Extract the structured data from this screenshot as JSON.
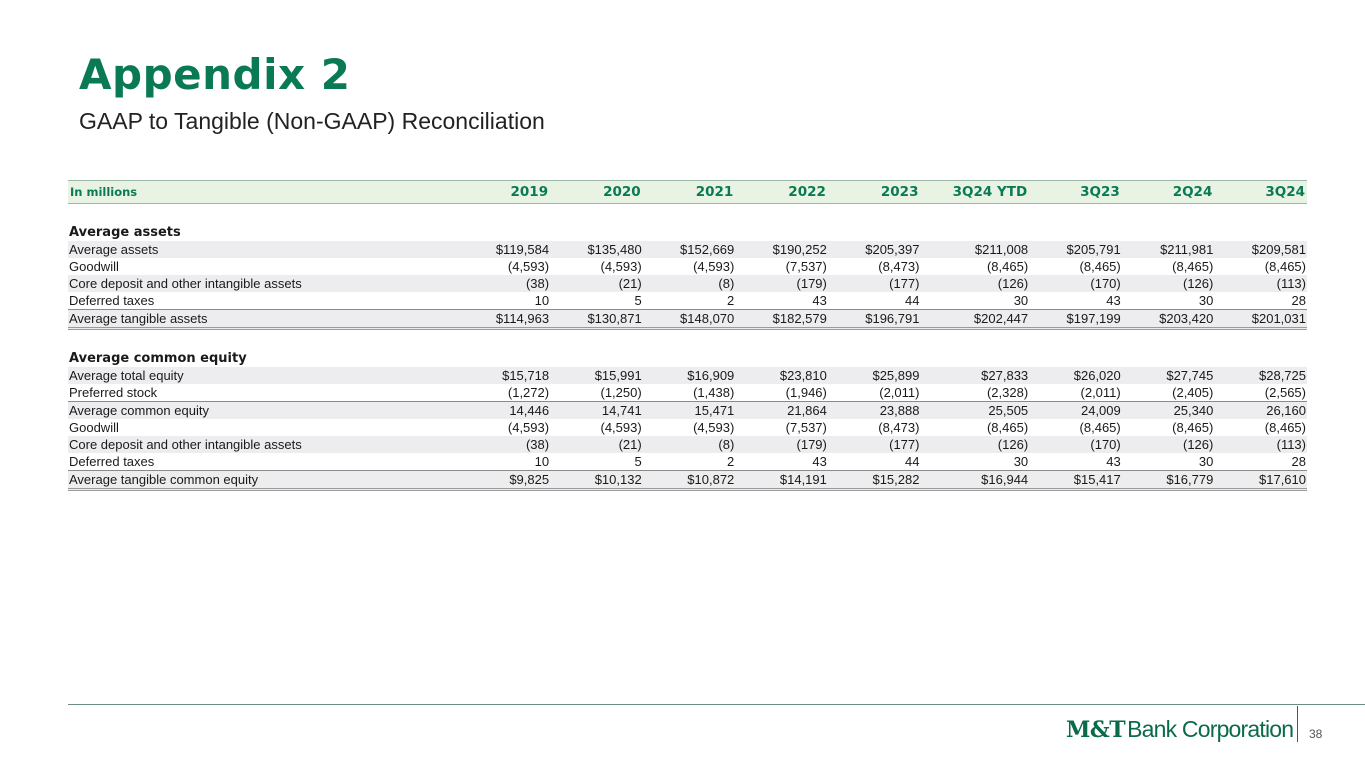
{
  "header": {
    "title": "Appendix 2",
    "subtitle": "GAAP to Tangible (Non-GAAP) Reconciliation"
  },
  "table": {
    "unit_label": "In millions",
    "columns": [
      "2019",
      "2020",
      "2021",
      "2022",
      "2023",
      "3Q24 YTD",
      "3Q23",
      "2Q24",
      "3Q24"
    ],
    "sections": [
      {
        "heading": "Average assets",
        "rows": [
          {
            "label": "Average assets",
            "values": [
              "$119,584",
              "$135,480",
              "$152,669",
              "$190,252",
              "$205,397",
              "$211,008",
              "$205,791",
              "$211,981",
              "$209,581"
            ]
          },
          {
            "label": "Goodwill",
            "values": [
              "(4,593)",
              "(4,593)",
              "(4,593)",
              "(7,537)",
              "(8,473)",
              "(8,465)",
              "(8,465)",
              "(8,465)",
              "(8,465)"
            ]
          },
          {
            "label": "Core deposit and other intangible assets",
            "values": [
              "(38)",
              "(21)",
              "(8)",
              "(179)",
              "(177)",
              "(126)",
              "(170)",
              "(126)",
              "(113)"
            ]
          },
          {
            "label": "Deferred taxes",
            "values": [
              "10",
              "5",
              "2",
              "43",
              "44",
              "30",
              "43",
              "30",
              "28"
            ]
          },
          {
            "label": "Average tangible assets",
            "values": [
              "$114,963",
              "$130,871",
              "$148,070",
              "$182,579",
              "$196,791",
              "$202,447",
              "$197,199",
              "$203,420",
              "$201,031"
            ]
          }
        ]
      },
      {
        "heading": "Average common equity",
        "rows": [
          {
            "label": "Average total equity",
            "values": [
              "$15,718",
              "$15,991",
              "$16,909",
              "$23,810",
              "$25,899",
              "$27,833",
              "$26,020",
              "$27,745",
              "$28,725"
            ]
          },
          {
            "label": "Preferred stock",
            "values": [
              "(1,272)",
              "(1,250)",
              "(1,438)",
              "(1,946)",
              "(2,011)",
              "(2,328)",
              "(2,011)",
              "(2,405)",
              "(2,565)"
            ]
          },
          {
            "label": "Average common equity",
            "values": [
              "14,446",
              "14,741",
              "15,471",
              "21,864",
              "23,888",
              "25,505",
              "24,009",
              "25,340",
              "26,160"
            ]
          },
          {
            "label": "Goodwill",
            "values": [
              "(4,593)",
              "(4,593)",
              "(4,593)",
              "(7,537)",
              "(8,473)",
              "(8,465)",
              "(8,465)",
              "(8,465)",
              "(8,465)"
            ]
          },
          {
            "label": "Core deposit and other intangible assets",
            "values": [
              "(38)",
              "(21)",
              "(8)",
              "(179)",
              "(177)",
              "(126)",
              "(170)",
              "(126)",
              "(113)"
            ]
          },
          {
            "label": "Deferred taxes",
            "values": [
              "10",
              "5",
              "2",
              "43",
              "44",
              "30",
              "43",
              "30",
              "28"
            ]
          },
          {
            "label": "Average tangible common equity",
            "values": [
              "$9,825",
              "$10,132",
              "$10,872",
              "$14,191",
              "$15,282",
              "$16,944",
              "$15,417",
              "$16,779",
              "$17,610"
            ]
          }
        ]
      }
    ]
  },
  "footer": {
    "logo_mark": "M&T",
    "logo_text": "Bank Corporation",
    "page_number": "38"
  }
}
